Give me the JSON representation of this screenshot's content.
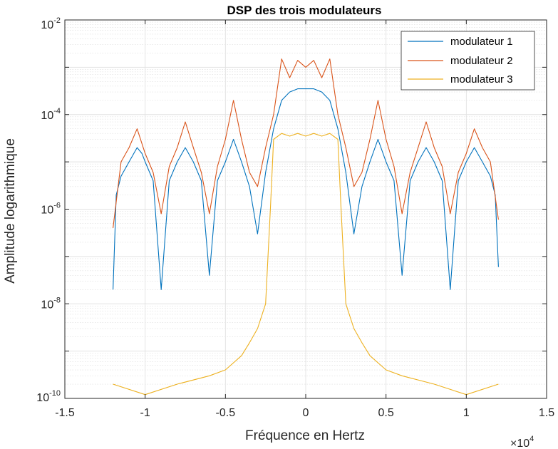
{
  "chart_data": {
    "type": "line",
    "title": "DSP des trois modulateurs",
    "xlabel": "Fréquence en Hertz",
    "ylabel": "Amplitude logarithmique",
    "x_exponent_label": "×10",
    "x_exponent": "4",
    "xlim": [
      -15000,
      15000
    ],
    "ylim": [
      1e-10,
      0.01
    ],
    "yscale": "log",
    "grid": true,
    "minor_grid": true,
    "legend_position": "top-right",
    "x_ticks": [
      {
        "value": -15000,
        "label": "-1.5"
      },
      {
        "value": -10000,
        "label": "-1"
      },
      {
        "value": -5000,
        "label": "-0.5"
      },
      {
        "value": 0,
        "label": "0"
      },
      {
        "value": 5000,
        "label": "0.5"
      },
      {
        "value": 10000,
        "label": "1"
      },
      {
        "value": 15000,
        "label": "1.5"
      }
    ],
    "y_ticks": [
      {
        "exp": -10,
        "base": "10",
        "sup": "-10"
      },
      {
        "exp": -8,
        "base": "10",
        "sup": "-8"
      },
      {
        "exp": -6,
        "base": "10",
        "sup": "-6"
      },
      {
        "exp": -4,
        "base": "10",
        "sup": "-4"
      },
      {
        "exp": -2,
        "base": "10",
        "sup": "-2"
      }
    ],
    "series": [
      {
        "name": "modulateur 1",
        "color": "#0072BD",
        "points": [
          [
            -12000,
            2e-08
          ],
          [
            -11800,
            2e-06
          ],
          [
            -11500,
            5e-06
          ],
          [
            -11000,
            1e-05
          ],
          [
            -10500,
            2e-05
          ],
          [
            -10200,
            1.5e-05
          ],
          [
            -10000,
            1e-05
          ],
          [
            -9500,
            4e-06
          ],
          [
            -9000,
            2e-08
          ],
          [
            -8500,
            4e-06
          ],
          [
            -8000,
            1e-05
          ],
          [
            -7500,
            2e-05
          ],
          [
            -7000,
            1e-05
          ],
          [
            -6500,
            4e-06
          ],
          [
            -6000,
            4e-08
          ],
          [
            -5500,
            4e-06
          ],
          [
            -5000,
            1e-05
          ],
          [
            -4500,
            3e-05
          ],
          [
            -4000,
            1e-05
          ],
          [
            -3500,
            3e-06
          ],
          [
            -3000,
            3e-07
          ],
          [
            -2500,
            6e-06
          ],
          [
            -2000,
            5e-05
          ],
          [
            -1500,
            0.0002
          ],
          [
            -1000,
            0.0003
          ],
          [
            -500,
            0.00035
          ],
          [
            0,
            0.00035
          ],
          [
            500,
            0.00035
          ],
          [
            1000,
            0.0003
          ],
          [
            1500,
            0.0002
          ],
          [
            2000,
            5e-05
          ],
          [
            2500,
            6e-06
          ],
          [
            3000,
            3e-07
          ],
          [
            3500,
            3e-06
          ],
          [
            4000,
            1e-05
          ],
          [
            4500,
            3e-05
          ],
          [
            5000,
            1e-05
          ],
          [
            5500,
            4e-06
          ],
          [
            6000,
            4e-08
          ],
          [
            6500,
            4e-06
          ],
          [
            7000,
            1e-05
          ],
          [
            7500,
            2e-05
          ],
          [
            8000,
            1e-05
          ],
          [
            8500,
            4e-06
          ],
          [
            9000,
            2e-08
          ],
          [
            9500,
            4e-06
          ],
          [
            10000,
            1e-05
          ],
          [
            10500,
            2e-05
          ],
          [
            11000,
            1e-05
          ],
          [
            11500,
            5e-06
          ],
          [
            11800,
            2e-06
          ],
          [
            12000,
            6e-08
          ]
        ]
      },
      {
        "name": "modulateur 2",
        "color": "#D95319",
        "points": [
          [
            -12000,
            4e-07
          ],
          [
            -11500,
            1e-05
          ],
          [
            -11000,
            2e-05
          ],
          [
            -10500,
            5e-05
          ],
          [
            -10000,
            1.5e-05
          ],
          [
            -9500,
            6e-06
          ],
          [
            -9000,
            8e-07
          ],
          [
            -8500,
            8e-06
          ],
          [
            -8000,
            2e-05
          ],
          [
            -7500,
            7e-05
          ],
          [
            -7000,
            2e-05
          ],
          [
            -6500,
            6e-06
          ],
          [
            -6000,
            8e-07
          ],
          [
            -5500,
            8e-06
          ],
          [
            -5000,
            3e-05
          ],
          [
            -4500,
            0.0002
          ],
          [
            -4000,
            3e-05
          ],
          [
            -3500,
            6e-06
          ],
          [
            -3000,
            3e-06
          ],
          [
            -2500,
            2e-05
          ],
          [
            -2000,
            0.0001
          ],
          [
            -1500,
            0.0015
          ],
          [
            -1000,
            0.0006
          ],
          [
            -500,
            0.0014
          ],
          [
            0,
            0.001
          ],
          [
            500,
            0.0014
          ],
          [
            1000,
            0.0006
          ],
          [
            1500,
            0.0015
          ],
          [
            2000,
            0.0001
          ],
          [
            2500,
            2e-05
          ],
          [
            3000,
            3e-06
          ],
          [
            3500,
            6e-06
          ],
          [
            4000,
            3e-05
          ],
          [
            4500,
            0.0002
          ],
          [
            5000,
            3e-05
          ],
          [
            5500,
            8e-06
          ],
          [
            6000,
            8e-07
          ],
          [
            6500,
            6e-06
          ],
          [
            7000,
            2e-05
          ],
          [
            7500,
            7e-05
          ],
          [
            8000,
            2e-05
          ],
          [
            8500,
            8e-06
          ],
          [
            9000,
            8e-07
          ],
          [
            9500,
            6e-06
          ],
          [
            10000,
            1.5e-05
          ],
          [
            10500,
            5e-05
          ],
          [
            11000,
            2e-05
          ],
          [
            11500,
            1e-05
          ],
          [
            12000,
            6e-07
          ]
        ]
      },
      {
        "name": "modulateur 3",
        "color": "#EDB120",
        "points": [
          [
            -12000,
            2e-10
          ],
          [
            -10000,
            1.2e-10
          ],
          [
            -8000,
            2e-10
          ],
          [
            -6000,
            3e-10
          ],
          [
            -5000,
            4e-10
          ],
          [
            -4000,
            8e-10
          ],
          [
            -3500,
            1.5e-09
          ],
          [
            -3000,
            3e-09
          ],
          [
            -2500,
            1e-08
          ],
          [
            -2200,
            1e-06
          ],
          [
            -2000,
            3e-05
          ],
          [
            -1500,
            4e-05
          ],
          [
            -1000,
            3.5e-05
          ],
          [
            -500,
            4e-05
          ],
          [
            0,
            3.5e-05
          ],
          [
            500,
            4e-05
          ],
          [
            1000,
            3.5e-05
          ],
          [
            1500,
            4e-05
          ],
          [
            2000,
            3e-05
          ],
          [
            2200,
            1e-06
          ],
          [
            2500,
            1e-08
          ],
          [
            3000,
            3e-09
          ],
          [
            3500,
            1.5e-09
          ],
          [
            4000,
            8e-10
          ],
          [
            5000,
            4e-10
          ],
          [
            6000,
            3e-10
          ],
          [
            8000,
            2e-10
          ],
          [
            10000,
            1.2e-10
          ],
          [
            12000,
            2e-10
          ]
        ]
      }
    ]
  }
}
